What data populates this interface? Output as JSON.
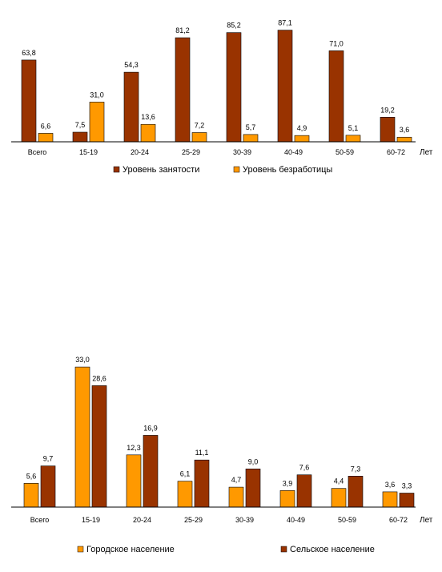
{
  "chart_data": [
    {
      "type": "bar",
      "categories": [
        "Всего",
        "15-19",
        "20-24",
        "25-29",
        "30-39",
        "40-49",
        "50-59",
        "60-72"
      ],
      "x_unit_label": "Лет",
      "ylim": [
        0,
        100
      ],
      "grid": false,
      "legend": "bottom",
      "series": [
        {
          "name": "Уровень занятости",
          "color": "#993300",
          "values": [
            63.8,
            7.5,
            54.3,
            81.2,
            85.2,
            87.1,
            71.0,
            19.2
          ],
          "labels": [
            "63,8",
            "7,5",
            "54,3",
            "81,2",
            "85,2",
            "87,1",
            "71,0",
            "19,2"
          ]
        },
        {
          "name": "Уровень безработицы",
          "color": "#FF9900",
          "values": [
            6.6,
            31.0,
            13.6,
            7.2,
            5.7,
            4.9,
            5.1,
            3.6
          ],
          "labels": [
            "6,6",
            "31,0",
            "13,6",
            "7,2",
            "5,7",
            "4,9",
            "5,1",
            "3,6"
          ]
        }
      ]
    },
    {
      "type": "bar",
      "categories": [
        "Всего",
        "15-19",
        "20-24",
        "25-29",
        "30-39",
        "40-49",
        "50-59",
        "60-72"
      ],
      "x_unit_label": "Лет",
      "ylim": [
        0,
        35
      ],
      "grid": false,
      "legend": "bottom",
      "series": [
        {
          "name": "Городское население",
          "color": "#FF9900",
          "values": [
            5.6,
            33.0,
            12.3,
            6.1,
            4.7,
            3.9,
            4.4,
            3.6
          ],
          "labels": [
            "5,6",
            "33,0",
            "12,3",
            "6,1",
            "4,7",
            "3,9",
            "4,4",
            "3,6"
          ]
        },
        {
          "name": "Сельское население",
          "color": "#993300",
          "values": [
            9.7,
            28.6,
            16.9,
            11.1,
            9.0,
            7.6,
            7.3,
            3.3
          ],
          "labels": [
            "9,7",
            "28,6",
            "16,9",
            "11,1",
            "9,0",
            "7,6",
            "7,3",
            "3,3"
          ]
        }
      ]
    }
  ]
}
